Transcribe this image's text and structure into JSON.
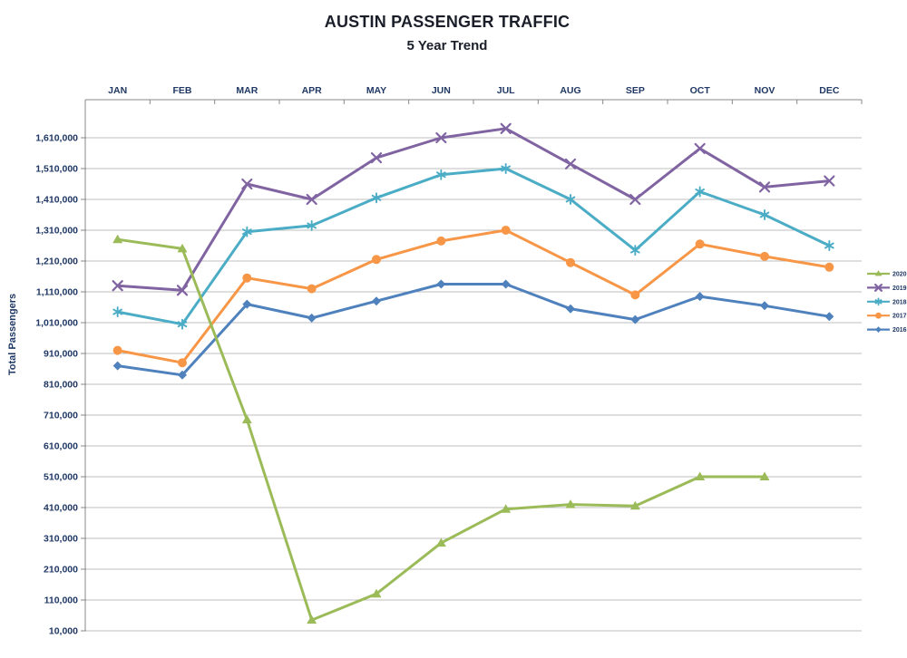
{
  "title": "AUSTIN PASSENGER TRAFFIC",
  "subtitle": "5 Year Trend",
  "y_axis_title": "Total Passengers",
  "colors": {
    "series_2016": "#4F81BD",
    "series_2017": "#F79646",
    "series_2018": "#4BACC6",
    "series_2019": "#8064A2",
    "series_2020": "#9BBB59",
    "gridline": "#BFBFBF",
    "axis": "#898989",
    "label_text": "#1f3864",
    "title_text": "#1a1e29"
  },
  "chart_data": {
    "type": "line",
    "title": "AUSTIN PASSENGER TRAFFIC",
    "subtitle": "5 Year Trend",
    "xlabel": "",
    "ylabel": "Total Passengers",
    "categories": [
      "JAN",
      "FEB",
      "MAR",
      "APR",
      "MAY",
      "JUN",
      "JUL",
      "AUG",
      "SEP",
      "OCT",
      "NOV",
      "DEC"
    ],
    "series": [
      {
        "name": "2016",
        "color": "#4F81BD",
        "marker": "diamond",
        "values": [
          870000,
          840000,
          1070000,
          1025000,
          1080000,
          1135000,
          1135000,
          1055000,
          1020000,
          1095000,
          1065000,
          1030000
        ]
      },
      {
        "name": "2017",
        "color": "#F79646",
        "marker": "circle",
        "values": [
          920000,
          880000,
          1155000,
          1120000,
          1215000,
          1275000,
          1310000,
          1205000,
          1100000,
          1265000,
          1225000,
          1190000
        ]
      },
      {
        "name": "2018",
        "color": "#4BACC6",
        "marker": "asterisk",
        "values": [
          1045000,
          1005000,
          1305000,
          1325000,
          1415000,
          1490000,
          1510000,
          1410000,
          1245000,
          1435000,
          1360000,
          1260000
        ]
      },
      {
        "name": "2019",
        "color": "#8064A2",
        "marker": "x",
        "values": [
          1130000,
          1115000,
          1460000,
          1410000,
          1545000,
          1610000,
          1640000,
          1525000,
          1410000,
          1575000,
          1450000,
          1470000
        ]
      },
      {
        "name": "2020",
        "color": "#9BBB59",
        "marker": "triangle",
        "values": [
          1280000,
          1250000,
          695000,
          45000,
          130000,
          295000,
          405000,
          420000,
          415000,
          510000,
          510000,
          null
        ]
      }
    ],
    "ylim": [
      10000,
      1610000
    ],
    "ytick_step": 100000,
    "ytick_labels": [
      "10,000",
      "110,000",
      "210,000",
      "310,000",
      "410,000",
      "510,000",
      "610,000",
      "710,000",
      "810,000",
      "910,000",
      "1,010,000",
      "1,110,000",
      "1,210,000",
      "1,310,000",
      "1,410,000",
      "1,510,000",
      "1,610,000"
    ],
    "grid": true,
    "x_axis_position": "top",
    "legend_position": "right",
    "legend_order": [
      "2020",
      "2019",
      "2018",
      "2017",
      "2016"
    ]
  }
}
